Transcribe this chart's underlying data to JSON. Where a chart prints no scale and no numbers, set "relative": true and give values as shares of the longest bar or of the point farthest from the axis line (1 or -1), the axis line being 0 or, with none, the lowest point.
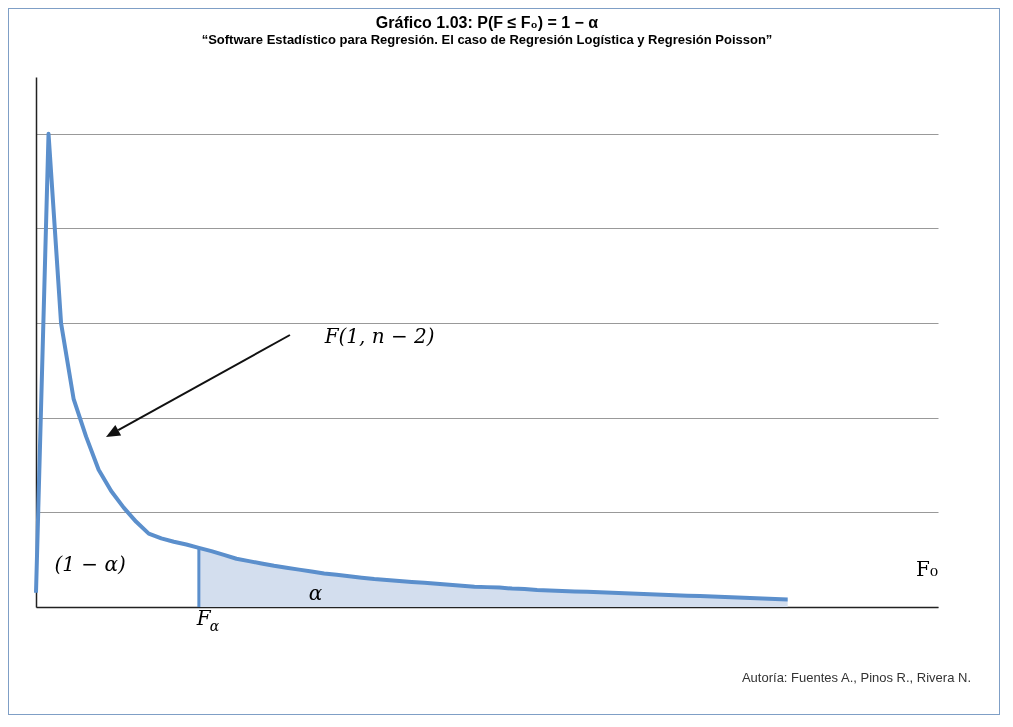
{
  "chart_data": {
    "type": "line",
    "relative": true,
    "title": "Gráfico 1.03: P(F ≤ F₀) = 1 − α",
    "subtitle": "“Software Estadístico para Regresión. El caso de Regresión Logística y Regresión Poisson”",
    "grid": "y",
    "line_style": "solid",
    "categories": [
      null,
      null,
      null,
      null,
      null,
      null,
      null,
      null,
      null,
      null,
      null,
      null,
      null,
      null,
      null,
      null,
      null,
      null,
      null,
      null,
      null,
      null,
      null,
      null,
      null,
      null,
      null,
      null,
      null,
      null,
      null,
      null,
      null,
      null,
      null,
      null,
      null,
      null,
      null,
      null,
      null,
      null,
      null,
      null,
      null,
      null,
      null,
      null,
      null,
      null,
      null,
      null,
      null,
      null,
      null,
      null,
      null,
      null,
      null,
      null,
      null
    ],
    "series": [
      {
        "type": "line",
        "color": "#5b8fcc",
        "values": [
          0.03,
          1.0,
          0.6,
          0.44,
          0.36,
          0.29,
          0.245,
          0.21,
          0.18,
          0.155,
          0.145,
          0.138,
          0.132,
          0.125,
          0.118,
          0.11,
          0.102,
          0.097,
          0.092,
          0.087,
          0.083,
          0.079,
          0.075,
          0.071,
          0.068,
          0.065,
          0.062,
          0.059,
          0.057,
          0.055,
          0.053,
          0.051,
          0.049,
          0.047,
          0.045,
          0.043,
          0.042,
          0.041,
          0.039,
          0.038,
          0.036,
          0.035,
          0.034,
          0.033,
          0.032,
          0.031,
          0.03,
          0.029,
          0.028,
          0.027,
          0.026,
          0.025,
          0.024,
          0.023,
          0.022,
          0.021,
          0.02,
          0.019,
          0.018,
          0.017,
          0.016
        ]
      },
      {
        "type": "area",
        "color": "#d3deee",
        "values": [
          null,
          null,
          null,
          null,
          null,
          null,
          null,
          null,
          null,
          null,
          null,
          null,
          null,
          0.125,
          0.118,
          0.11,
          0.102,
          0.097,
          0.092,
          0.087,
          0.083,
          0.079,
          0.075,
          0.071,
          0.068,
          0.065,
          0.062,
          0.059,
          0.057,
          0.055,
          0.053,
          0.051,
          0.049,
          0.047,
          0.045,
          0.043,
          0.042,
          0.041,
          0.039,
          0.038,
          0.036,
          0.035,
          0.034,
          0.033,
          0.032,
          0.031,
          0.03,
          0.029,
          0.028,
          0.027,
          0.026,
          0.025,
          0.024,
          0.023,
          0.022,
          0.021,
          0.02,
          0.019,
          0.018,
          0.017,
          0.016
        ]
      }
    ],
    "annotations": [
      "F(1, n − 2)",
      "(1 − α)",
      "α",
      "F$_{α}$",
      "F₀",
      "Autoría: Fuentes A., Pinos R., Rivera N."
    ]
  }
}
